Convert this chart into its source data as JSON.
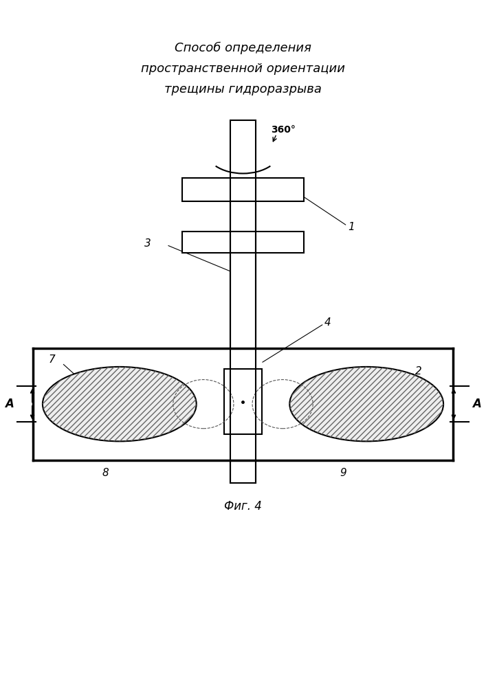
{
  "title_line1": "Способ определения",
  "title_line2": "пространственной ориентации",
  "title_line3": "трещины гидроразрыва",
  "fig_label": "Фиг. 4",
  "bg_color": "#ffffff",
  "line_color": "#000000"
}
